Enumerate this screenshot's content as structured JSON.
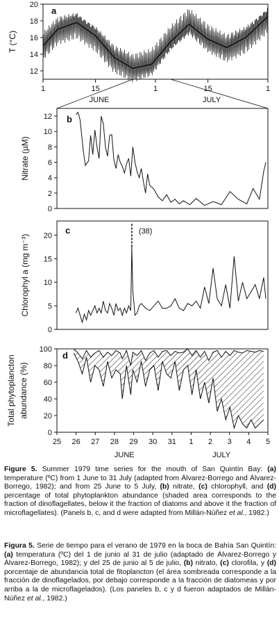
{
  "chart_data": [
    {
      "panel": "a",
      "type": "line",
      "ylabel": "T (°C)",
      "ylim": [
        11,
        20
      ],
      "yticks": [
        12,
        14,
        16,
        18,
        20
      ],
      "xtick_labels": [
        "1",
        "15",
        "1",
        "15",
        "1"
      ],
      "month_labels": [
        "JUNE",
        "JULY"
      ],
      "x_days": [
        1,
        5,
        10,
        15,
        20,
        25,
        30,
        35,
        40,
        45,
        50,
        55,
        61
      ],
      "values": [
        15.0,
        17.0,
        17.8,
        16.2,
        13.6,
        12.3,
        12.8,
        15.5,
        17.6,
        15.8,
        14.8,
        16.0,
        18.5
      ]
    },
    {
      "panel": "b",
      "type": "line",
      "ylabel": "Nitrate (µM)",
      "ylim": [
        0,
        13
      ],
      "yticks": [
        0,
        2,
        4,
        6,
        8,
        10,
        12
      ],
      "x": [
        25.9,
        26.0,
        26.1,
        26.25,
        26.35,
        26.5,
        26.6,
        26.7,
        26.8,
        26.9,
        27.0,
        27.1,
        27.2,
        27.3,
        27.4,
        27.5,
        27.6,
        27.7,
        27.8,
        27.9,
        28.0,
        28.1,
        28.2,
        28.3,
        28.4,
        28.5,
        28.6,
        28.7,
        28.8,
        28.9,
        29.0,
        29.1,
        29.2,
        29.3,
        29.4,
        29.6,
        29.8,
        30.0,
        30.2,
        30.4,
        30.6,
        30.8,
        31.0,
        31.3,
        31.6,
        32.0,
        32.4,
        32.8,
        33.2,
        33.6,
        34.0,
        34.3,
        34.6,
        34.8,
        34.9
      ],
      "values": [
        12.2,
        12.5,
        11.5,
        7.5,
        5.6,
        6.2,
        9.5,
        7.0,
        10.2,
        8.0,
        6.5,
        12.0,
        11.0,
        8.0,
        6.8,
        9.5,
        9.6,
        6.3,
        5.2,
        7.0,
        6.0,
        5.5,
        4.6,
        5.8,
        6.5,
        4.2,
        8.0,
        6.0,
        4.8,
        4.0,
        5.2,
        3.5,
        2.0,
        4.5,
        3.0,
        2.5,
        1.5,
        1.0,
        1.8,
        0.8,
        1.2,
        0.6,
        1.0,
        0.5,
        1.3,
        0.4,
        0.9,
        0.5,
        2.2,
        1.2,
        0.6,
        2.6,
        1.2,
        4.8,
        6.0
      ]
    },
    {
      "panel": "c",
      "type": "line",
      "ylabel": "Chlorophyl a (mg m⁻³)",
      "ylim": [
        0,
        23
      ],
      "yticks": [
        0,
        5,
        10,
        15,
        20
      ],
      "annotation": "(38)",
      "x": [
        25.9,
        26.0,
        26.1,
        26.2,
        26.3,
        26.4,
        26.5,
        26.6,
        26.7,
        26.8,
        26.9,
        27.0,
        27.1,
        27.2,
        27.3,
        27.4,
        27.5,
        27.6,
        27.7,
        27.8,
        27.9,
        28.0,
        28.1,
        28.2,
        28.3,
        28.4,
        28.5,
        28.55,
        28.6,
        28.65,
        28.7,
        28.8,
        28.9,
        29.0,
        29.2,
        29.4,
        29.6,
        29.8,
        30.0,
        30.2,
        30.4,
        30.6,
        30.8,
        31.0,
        31.2,
        31.4,
        31.6,
        31.8,
        32.0,
        32.2,
        32.4,
        32.6,
        32.8,
        33.0,
        33.2,
        33.4,
        33.6,
        33.8,
        34.0,
        34.2,
        34.4,
        34.6,
        34.8,
        34.9
      ],
      "values": [
        3.5,
        4.5,
        3.0,
        1.5,
        3.2,
        2.0,
        4.0,
        3.0,
        4.0,
        5.0,
        3.5,
        4.5,
        3.5,
        6.0,
        4.0,
        3.5,
        5.5,
        4.5,
        3.0,
        5.5,
        4.0,
        4.5,
        3.0,
        4.5,
        3.5,
        5.0,
        4.0,
        17.5,
        8.0,
        5.5,
        3.0,
        3.5,
        5.0,
        5.5,
        4.5,
        4.0,
        5.0,
        6.0,
        4.5,
        4.5,
        5.0,
        6.5,
        4.5,
        4.0,
        5.5,
        5.0,
        6.0,
        4.5,
        9.0,
        5.5,
        13.0,
        6.5,
        5.0,
        9.5,
        4.5,
        15.5,
        6.0,
        10.0,
        6.5,
        8.0,
        9.5,
        6.5,
        11.0,
        6.5
      ]
    },
    {
      "panel": "d",
      "type": "area",
      "ylabel": "Total phytoplancton abundance (%)",
      "ylim": [
        0,
        100
      ],
      "yticks": [
        0,
        20,
        40,
        60,
        80,
        100
      ],
      "xlim": [
        25,
        35
      ],
      "xtick_labels": [
        "25",
        "26",
        "27",
        "28",
        "29",
        "30",
        "31",
        "1",
        "2",
        "3",
        "4",
        "5"
      ],
      "month_labels": [
        "JUNE",
        "JULY"
      ],
      "x": [
        25.8,
        26.0,
        26.2,
        26.4,
        26.6,
        26.8,
        27.0,
        27.2,
        27.4,
        27.6,
        27.8,
        28.0,
        28.1,
        28.3,
        28.5,
        28.6,
        28.8,
        29.0,
        29.2,
        29.4,
        29.6,
        29.8,
        30.0,
        30.2,
        30.4,
        30.6,
        30.8,
        31.0,
        31.2,
        31.4,
        31.6,
        31.8,
        32.0,
        32.2,
        32.4,
        32.6,
        32.8,
        33.0,
        33.2,
        33.4,
        33.6,
        33.8,
        34.0,
        34.2,
        34.4,
        34.6,
        34.8
      ],
      "upper": [
        100,
        95,
        88,
        98,
        90,
        95,
        98,
        90,
        96,
        92,
        98,
        95,
        88,
        98,
        80,
        96,
        92,
        98,
        86,
        95,
        98,
        90,
        97,
        98,
        92,
        97,
        95,
        96,
        100,
        92,
        98,
        90,
        97,
        86,
        96,
        98,
        90,
        97,
        92,
        98,
        96,
        95,
        98,
        97,
        96,
        98,
        97
      ],
      "lower": [
        95,
        85,
        70,
        90,
        60,
        80,
        75,
        55,
        85,
        65,
        75,
        70,
        40,
        80,
        45,
        75,
        60,
        85,
        55,
        75,
        80,
        50,
        85,
        70,
        65,
        85,
        50,
        75,
        80,
        45,
        75,
        40,
        60,
        35,
        65,
        25,
        40,
        15,
        30,
        5,
        20,
        10,
        5,
        15,
        5,
        10,
        15
      ]
    }
  ],
  "caption": {
    "en": {
      "label": "Figure 5.",
      "t1": " Summer 1979 time series for the mouth of San Quintín Bay: ",
      "a": "(a)",
      "t2": " temperature (ºC) from 1 June to 31 July (adapted from Álvarez-Borrego and Álvarez-Borrego, 1982); and from 25 June to 5 July, ",
      "b": "(b)",
      "t3": " nitrate, ",
      "c": "(c)",
      "t4": " chlorophyll, and ",
      "d": "(d)",
      "t5": " percentage of total phytoplankton abundance (shaded area corresponds to the fraction of dinoflagellates, below it the fraction of diatoms and above it the fraction of microflagellates). (Panels b, c, and d were adapted from Millán-Núñez ",
      "etal": "et al.",
      "t6": ", 1982.)"
    },
    "es": {
      "label": "Figura 5.",
      "t1": " Serie de tiempo para el verano de 1979 en la boca de Bahía San Quintín: ",
      "a": "(a)",
      "t2": " temperatura (ºC) del 1 de junio al 31 de julio (adaptado de Álvarez-Borrego y Álvarez-Borrego, 1982); y del 25 de junio al 5 de julio, ",
      "b": "(b)",
      "t3": " nitrato, ",
      "c": "(c)",
      "t4": " clorofila, y ",
      "d": "(d)",
      "t5": " porcentaje de abundancia total de fitoplancton (el área sombreada corresponde a la fracción de dinoflagelados, por debajo corresponde a la fracción de diatomeas y por arriba a la de microflagelados). (Los paneles b, c y d fueron adaptados de Millán-Núñez ",
      "etal": "et al.",
      "t6": ", 1982.)"
    }
  }
}
